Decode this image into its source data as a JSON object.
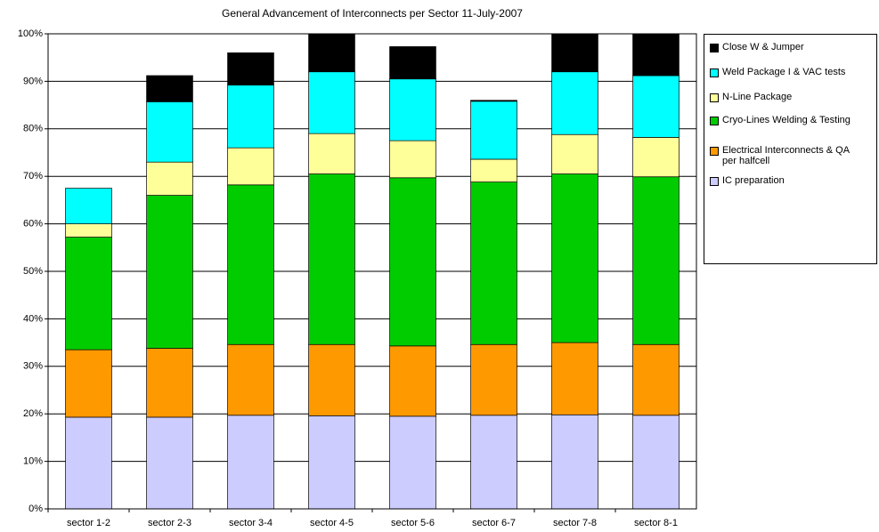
{
  "chart_data": {
    "type": "stacked_bar",
    "title": "General Advancement of Interconnects per Sector 11-July-2007",
    "categories": [
      "sector 1-2",
      "sector 2-3",
      "sector 3-4",
      "sector 4-5",
      "sector 5-6",
      "sector 6-7",
      "sector 7-8",
      "sector 8-1"
    ],
    "series": [
      {
        "name": "IC preparation",
        "color": "#ccccff",
        "values": [
          19.3,
          19.3,
          19.7,
          19.6,
          19.5,
          19.7,
          19.8,
          19.7
        ]
      },
      {
        "name": "Electrical Interconnects & QA per halfcell",
        "color": "#ff9900",
        "values": [
          14.2,
          14.5,
          14.9,
          15.0,
          14.8,
          14.9,
          15.2,
          14.9
        ]
      },
      {
        "name": "Cryo-Lines Welding & Testing",
        "color": "#00cc00",
        "values": [
          23.7,
          32.2,
          33.6,
          35.9,
          35.4,
          34.2,
          35.5,
          35.3
        ]
      },
      {
        "name": "N-Line Package",
        "color": "#ffff99",
        "values": [
          2.8,
          7.0,
          7.8,
          8.5,
          7.8,
          4.8,
          8.3,
          8.3
        ]
      },
      {
        "name": "Weld Package I & VAC tests",
        "color": "#00ffff",
        "values": [
          7.5,
          12.7,
          13.2,
          13.0,
          13.0,
          12.2,
          13.2,
          13.0
        ]
      },
      {
        "name": "Close W & Jumper",
        "color": "#000000",
        "values": [
          0,
          5.5,
          6.8,
          8.0,
          6.8,
          0.2,
          8.0,
          8.8
        ]
      }
    ],
    "ylim": [
      0,
      100
    ],
    "yticks": [
      {
        "value": 0,
        "label": "0%"
      },
      {
        "value": 10,
        "label": "10%"
      },
      {
        "value": 20,
        "label": "20%"
      },
      {
        "value": 30,
        "label": "30%"
      },
      {
        "value": 40,
        "label": "40%"
      },
      {
        "value": 50,
        "label": "50%"
      },
      {
        "value": 60,
        "label": "60%"
      },
      {
        "value": 70,
        "label": "70%"
      },
      {
        "value": 80,
        "label": "80%"
      },
      {
        "value": 90,
        "label": "90%"
      },
      {
        "value": 100,
        "label": "100%"
      }
    ],
    "grid": true,
    "legend": "right"
  }
}
